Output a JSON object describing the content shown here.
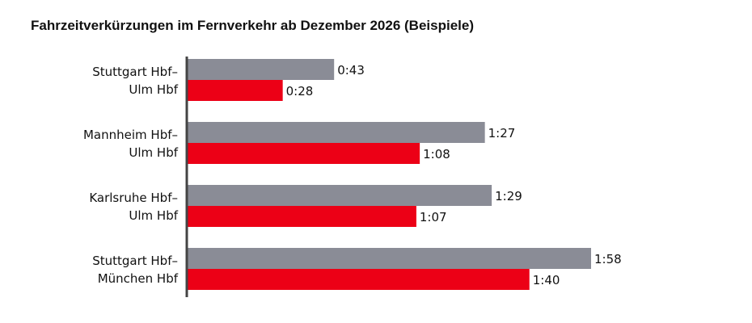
{
  "chart_data": {
    "type": "bar",
    "orientation": "horizontal",
    "title": "Fahrzeitverkürzungen im Fernverkehr ab Dezember 2026 (Beispiele)",
    "xlabel": "",
    "ylabel": "",
    "grid": false,
    "legend": "none",
    "unit": "h:mm",
    "xlim": [
      0,
      118
    ],
    "categories": [
      {
        "lines": [
          "Stuttgart Hbf–",
          "Ulm Hbf"
        ]
      },
      {
        "lines": [
          "Mannheim Hbf–",
          "Ulm Hbf"
        ]
      },
      {
        "lines": [
          "Karlsruhe Hbf–",
          "Ulm Hbf"
        ]
      },
      {
        "lines": [
          "Stuttgart Hbf–",
          "München Hbf"
        ]
      }
    ],
    "series": [
      {
        "color": "#8a8c96",
        "values": [
          43,
          87,
          89,
          118
        ],
        "labels": [
          "0:43",
          "1:27",
          "1:29",
          "1:58"
        ]
      },
      {
        "color": "#ec0016",
        "values": [
          28,
          68,
          67,
          100
        ],
        "labels": [
          "0:28",
          "1:08",
          "1:07",
          "1:40"
        ]
      }
    ]
  }
}
